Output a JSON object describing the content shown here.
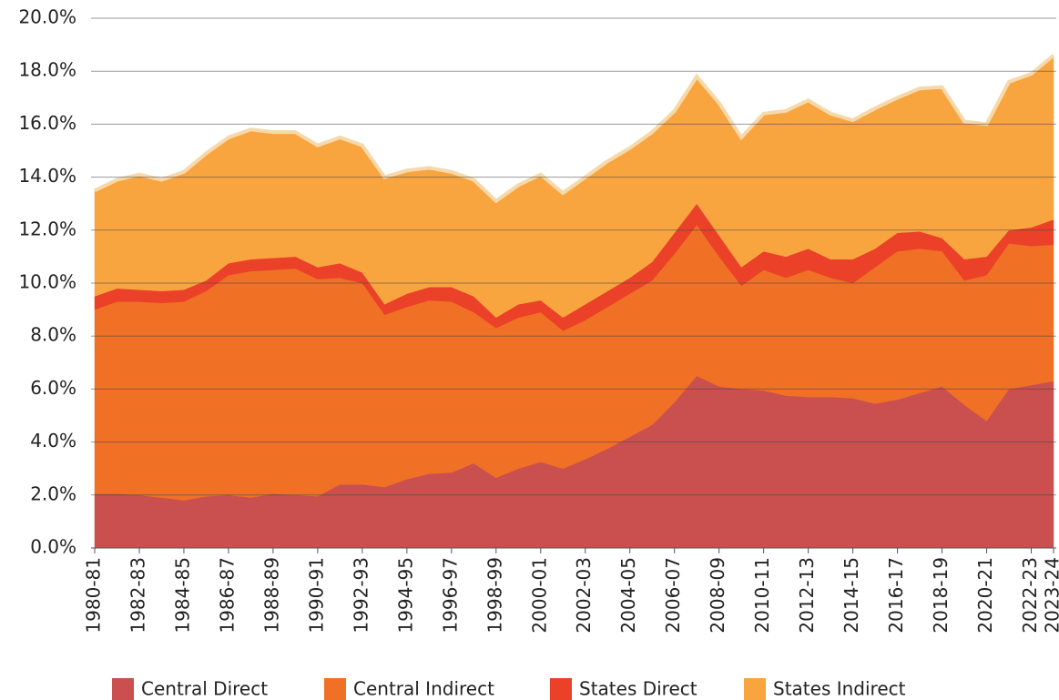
{
  "chart_data": {
    "type": "stacked_area",
    "categories": [
      "1980-81",
      null,
      "1982-83",
      null,
      "1984-85",
      null,
      "1986-87",
      null,
      "1988-89",
      null,
      "1990-91",
      null,
      "1992-93",
      null,
      "1994-95",
      null,
      "1996-97",
      null,
      "1998-99",
      null,
      "2000-01",
      null,
      "2002-03",
      null,
      "2004-05",
      null,
      "2006-07",
      null,
      "2008-09",
      null,
      "2010-11",
      null,
      "2012-13",
      null,
      "2014-15",
      null,
      "2016-17",
      null,
      "2018-19",
      null,
      "2020-21",
      null,
      "2022-23",
      "2023-24"
    ],
    "series": [
      {
        "name": "Central Direct",
        "color": "#c9504f",
        "values": [
          2.05,
          2.05,
          2.0,
          1.9,
          1.8,
          1.95,
          2.0,
          1.9,
          2.05,
          2.0,
          1.95,
          2.4,
          2.4,
          2.3,
          2.6,
          2.8,
          2.85,
          3.2,
          2.65,
          3.0,
          3.25,
          3.0,
          3.35,
          3.75,
          4.2,
          4.65,
          5.5,
          6.5,
          6.1,
          6.0,
          5.95,
          5.75,
          5.7,
          5.7,
          5.65,
          5.45,
          5.6,
          5.85,
          6.1,
          5.4,
          4.8,
          6.0,
          6.15,
          6.3
        ]
      },
      {
        "name": "Central Indirect",
        "color": "#f07026",
        "values": [
          6.95,
          7.25,
          7.3,
          7.35,
          7.5,
          7.75,
          8.3,
          8.55,
          8.45,
          8.55,
          8.2,
          7.8,
          7.6,
          6.5,
          6.5,
          6.55,
          6.45,
          5.7,
          5.65,
          5.7,
          5.65,
          5.2,
          5.25,
          5.35,
          5.4,
          5.45,
          5.6,
          5.7,
          4.9,
          3.9,
          4.55,
          4.45,
          4.8,
          4.5,
          4.35,
          5.15,
          5.6,
          5.45,
          5.1,
          4.7,
          5.5,
          5.5,
          5.25,
          5.15
        ]
      },
      {
        "name": "States Direct",
        "color": "#eb4128",
        "values": [
          0.5,
          0.5,
          0.45,
          0.45,
          0.45,
          0.4,
          0.45,
          0.45,
          0.45,
          0.45,
          0.45,
          0.55,
          0.4,
          0.4,
          0.5,
          0.5,
          0.55,
          0.6,
          0.4,
          0.5,
          0.45,
          0.5,
          0.6,
          0.6,
          0.6,
          0.7,
          0.8,
          0.8,
          0.8,
          0.7,
          0.7,
          0.8,
          0.8,
          0.7,
          0.9,
          0.7,
          0.7,
          0.65,
          0.5,
          0.8,
          0.7,
          0.5,
          0.7,
          0.95
        ]
      },
      {
        "name": "States Indirect",
        "color": "#f8a540",
        "values": [
          4.0,
          4.1,
          4.35,
          4.2,
          4.45,
          4.8,
          4.75,
          4.9,
          4.75,
          4.7,
          4.6,
          4.75,
          4.8,
          4.8,
          4.65,
          4.5,
          4.35,
          4.4,
          4.4,
          4.5,
          4.75,
          4.7,
          4.8,
          4.9,
          4.9,
          4.9,
          4.6,
          4.8,
          5.0,
          4.9,
          5.2,
          5.5,
          5.6,
          5.5,
          5.25,
          5.3,
          5.1,
          5.4,
          5.7,
          5.2,
          5.0,
          5.6,
          5.8,
          6.2
        ]
      }
    ],
    "ylim": [
      0,
      20
    ],
    "yticks": [
      {
        "value": 0,
        "label": "0.0%"
      },
      {
        "value": 2,
        "label": "2.0%"
      },
      {
        "value": 4,
        "label": "4.0%"
      },
      {
        "value": 6,
        "label": "6.0%"
      },
      {
        "value": 8,
        "label": "8.0%"
      },
      {
        "value": 10,
        "label": "10.0%"
      },
      {
        "value": 12,
        "label": "12.0%"
      },
      {
        "value": 14,
        "label": "14.0%"
      },
      {
        "value": 16,
        "label": "16.0%"
      },
      {
        "value": 18,
        "label": "18.0%"
      },
      {
        "value": 20,
        "label": "20.0%"
      }
    ],
    "grid": true,
    "legend": "bottom"
  }
}
